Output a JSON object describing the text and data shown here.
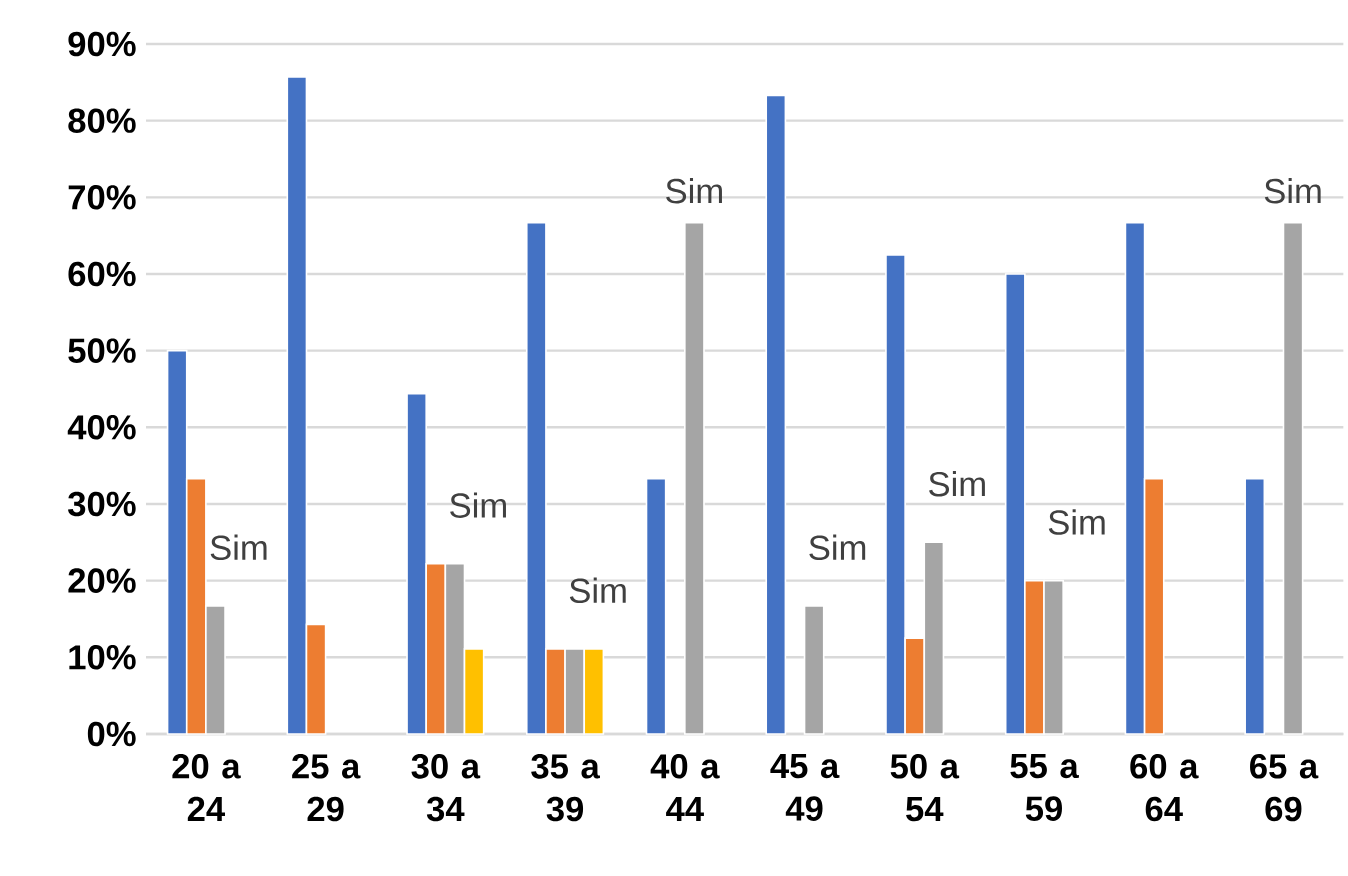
{
  "chart_data": {
    "type": "bar",
    "categories": [
      "20 a 24",
      "25 a 29",
      "30 a 34",
      "35 a 39",
      "40 a 44",
      "45 a 49",
      "50 a 54",
      "55 a 59",
      "60 a 64",
      "65 a 69"
    ],
    "series": [
      {
        "color": "#4472c4",
        "values": [
          50,
          85.7,
          44.4,
          66.7,
          33.3,
          83.3,
          62.5,
          60,
          66.7,
          33.3
        ]
      },
      {
        "color": "#ed7d31",
        "values": [
          33.3,
          14.3,
          22.2,
          11.1,
          null,
          null,
          12.5,
          20,
          33.3,
          null
        ]
      },
      {
        "color": "#a5a5a5",
        "values": [
          16.7,
          null,
          22.2,
          11.1,
          66.7,
          16.7,
          25,
          20,
          null,
          66.7
        ]
      },
      {
        "color": "#ffc000",
        "values": [
          null,
          null,
          11.1,
          11.1,
          null,
          null,
          null,
          null,
          null,
          null
        ]
      }
    ],
    "ylim": [
      0,
      90
    ],
    "yticks": [
      {
        "value": 0,
        "label": "0%"
      },
      {
        "value": 10,
        "label": "10%"
      },
      {
        "value": 20,
        "label": "20%"
      },
      {
        "value": 30,
        "label": "30%"
      },
      {
        "value": 40,
        "label": "40%"
      },
      {
        "value": 50,
        "label": "50%"
      },
      {
        "value": 60,
        "label": "60%"
      },
      {
        "value": 70,
        "label": "70%"
      },
      {
        "value": 80,
        "label": "80%"
      },
      {
        "value": 90,
        "label": "90%"
      }
    ],
    "grid": "y",
    "annotations": [
      {
        "text": "Sim",
        "x": "20 a 24",
        "y": 16.7
      },
      {
        "text": "Sim",
        "x": "30 a 34",
        "y": 22.2
      },
      {
        "text": "Sim",
        "x": "35 a 39",
        "y": 11.1
      },
      {
        "text": "Sim",
        "x": "40 a 44",
        "y": 66.7
      },
      {
        "text": "Sim",
        "x": "45 a 49",
        "y": 16.7
      },
      {
        "text": "Sim",
        "x": "50 a 54",
        "y": 25
      },
      {
        "text": "Sim",
        "x": "55 a 59",
        "y": 20
      },
      {
        "text": "Sim",
        "x": "65 a 69",
        "y": 66.7
      }
    ]
  }
}
